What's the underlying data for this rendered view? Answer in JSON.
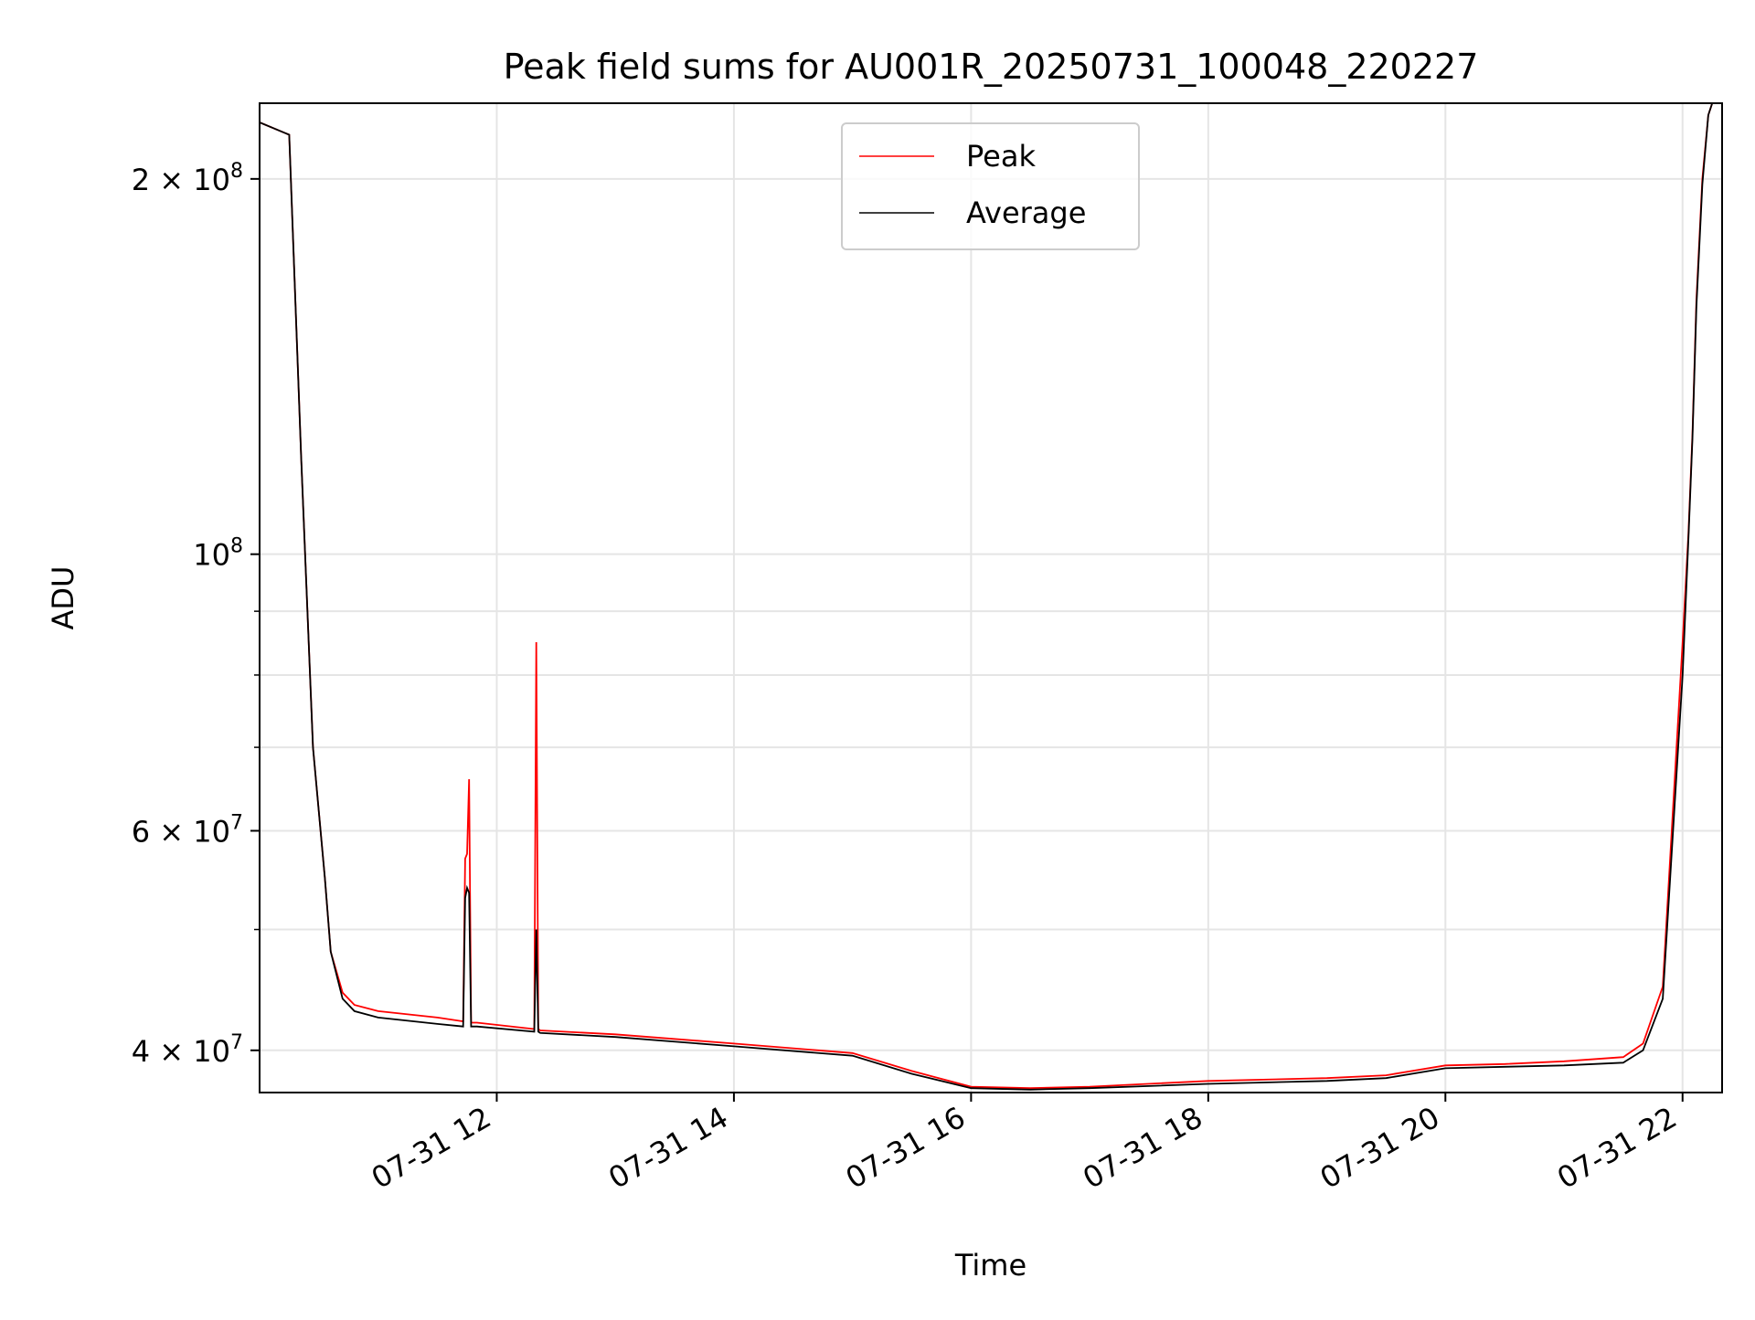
{
  "chart_data": {
    "type": "line",
    "title": "Peak field sums for AU001R_20250731_100048_220227",
    "xlabel": "Time",
    "ylabel": "ADU",
    "y_scale": "log",
    "grid": true,
    "legend_position": "top-center",
    "xlim": [
      "2025-07-31 10:00",
      "2025-07-31 22:20"
    ],
    "ylim": [
      37000000,
      230000000
    ],
    "x_ticks": [
      {
        "value": "2025-07-31 12:00",
        "label": "07-31 12"
      },
      {
        "value": "2025-07-31 14:00",
        "label": "07-31 14"
      },
      {
        "value": "2025-07-31 16:00",
        "label": "07-31 16"
      },
      {
        "value": "2025-07-31 18:00",
        "label": "07-31 18"
      },
      {
        "value": "2025-07-31 20:00",
        "label": "07-31 20"
      },
      {
        "value": "2025-07-31 22:00",
        "label": "07-31 22"
      }
    ],
    "y_ticks": [
      {
        "value": 40000000,
        "base": "4 × 10",
        "exp": "7"
      },
      {
        "value": 60000000,
        "base": "6 × 10",
        "exp": "7"
      },
      {
        "value": 100000000,
        "base": "10",
        "exp": "8"
      },
      {
        "value": 200000000,
        "base": "2 × 10",
        "exp": "8"
      }
    ],
    "y_minor_ticks": [
      50000000,
      70000000,
      80000000,
      90000000
    ],
    "series": [
      {
        "name": "Peak",
        "color": "#ff0000",
        "x": [
          "2025-07-31 10:00",
          "2025-07-31 10:12",
          "2025-07-31 10:15",
          "2025-07-31 10:21",
          "2025-07-31 10:27",
          "2025-07-31 10:33",
          "2025-07-31 10:36",
          "2025-07-31 10:42",
          "2025-07-31 10:48",
          "2025-07-31 11:00",
          "2025-07-31 11:30",
          "2025-07-31 11:43",
          "2025-07-31 11:44",
          "2025-07-31 11:45",
          "2025-07-31 11:46",
          "2025-07-31 11:47",
          "2025-07-31 11:50",
          "2025-07-31 12:19",
          "2025-07-31 12:20",
          "2025-07-31 12:21",
          "2025-07-31 12:22",
          "2025-07-31 13:00",
          "2025-07-31 14:00",
          "2025-07-31 15:00",
          "2025-07-31 15:30",
          "2025-07-31 16:00",
          "2025-07-31 16:30",
          "2025-07-31 17:00",
          "2025-07-31 18:00",
          "2025-07-31 19:00",
          "2025-07-31 19:30",
          "2025-07-31 20:00",
          "2025-07-31 20:30",
          "2025-07-31 21:00",
          "2025-07-31 21:30",
          "2025-07-31 21:40",
          "2025-07-31 21:50",
          "2025-07-31 22:00",
          "2025-07-31 22:03",
          "2025-07-31 22:05",
          "2025-07-31 22:07",
          "2025-07-31 22:10",
          "2025-07-31 22:13",
          "2025-07-31 22:15",
          "2025-07-31 22:20"
        ],
        "values": [
          222000000,
          218000000,
          217000000,
          120000000,
          70000000,
          55000000,
          48000000,
          44500000,
          43500000,
          43000000,
          42500000,
          42200000,
          57000000,
          57500000,
          66000000,
          42100000,
          42100000,
          41600000,
          85000000,
          41600000,
          41500000,
          41200000,
          40500000,
          39800000,
          38500000,
          37400000,
          37300000,
          37400000,
          37800000,
          38000000,
          38200000,
          38900000,
          39000000,
          39200000,
          39500000,
          40500000,
          45000000,
          85000000,
          104000000,
          125000000,
          160000000,
          200000000,
          225000000,
          230000000,
          230000000
        ]
      },
      {
        "name": "Average",
        "color": "#000000",
        "x": [
          "2025-07-31 10:00",
          "2025-07-31 10:12",
          "2025-07-31 10:15",
          "2025-07-31 10:21",
          "2025-07-31 10:27",
          "2025-07-31 10:33",
          "2025-07-31 10:36",
          "2025-07-31 10:42",
          "2025-07-31 10:48",
          "2025-07-31 11:00",
          "2025-07-31 11:30",
          "2025-07-31 11:43",
          "2025-07-31 11:44",
          "2025-07-31 11:45",
          "2025-07-31 11:46",
          "2025-07-31 11:47",
          "2025-07-31 11:50",
          "2025-07-31 12:19",
          "2025-07-31 12:20",
          "2025-07-31 12:21",
          "2025-07-31 12:22",
          "2025-07-31 13:00",
          "2025-07-31 14:00",
          "2025-07-31 15:00",
          "2025-07-31 15:30",
          "2025-07-31 16:00",
          "2025-07-31 16:30",
          "2025-07-31 17:00",
          "2025-07-31 18:00",
          "2025-07-31 19:00",
          "2025-07-31 19:30",
          "2025-07-31 20:00",
          "2025-07-31 20:30",
          "2025-07-31 21:00",
          "2025-07-31 21:30",
          "2025-07-31 21:40",
          "2025-07-31 21:50",
          "2025-07-31 22:00",
          "2025-07-31 22:03",
          "2025-07-31 22:05",
          "2025-07-31 22:07",
          "2025-07-31 22:10",
          "2025-07-31 22:13",
          "2025-07-31 22:15",
          "2025-07-31 22:20"
        ],
        "values": [
          222000000,
          218000000,
          217000000,
          120000000,
          70000000,
          55000000,
          48000000,
          44000000,
          43000000,
          42500000,
          42000000,
          41800000,
          53000000,
          54000000,
          53500000,
          41800000,
          41800000,
          41400000,
          50000000,
          41400000,
          41300000,
          41000000,
          40300000,
          39600000,
          38300000,
          37300000,
          37200000,
          37300000,
          37600000,
          37800000,
          38000000,
          38700000,
          38800000,
          38900000,
          39100000,
          40000000,
          44000000,
          80000000,
          103000000,
          124000000,
          158000000,
          198000000,
          225000000,
          230000000,
          230000000
        ]
      }
    ]
  }
}
